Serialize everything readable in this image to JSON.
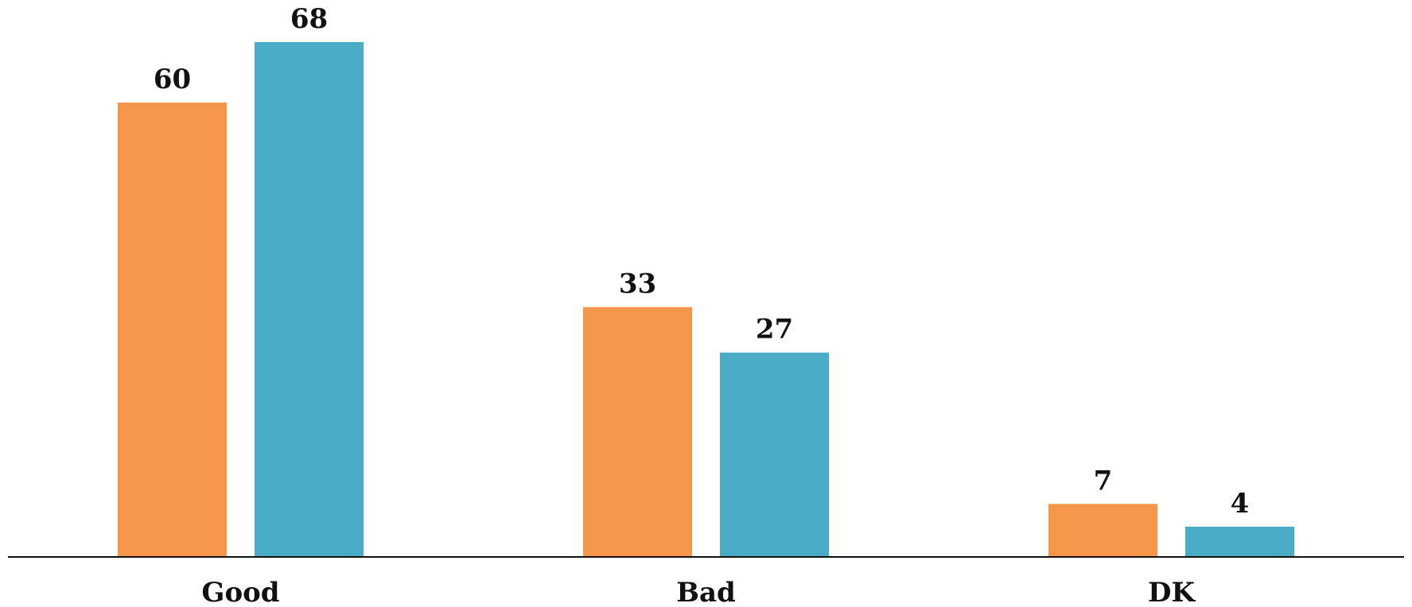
{
  "chart_data": {
    "type": "bar",
    "categories": [
      "Good",
      "Bad",
      "DK"
    ],
    "series": [
      {
        "color": "#F6964A",
        "values": [
          60,
          33,
          7
        ]
      },
      {
        "color": "#4AABC5",
        "values": [
          68,
          27,
          4
        ]
      }
    ],
    "ylim": [
      0,
      70
    ],
    "grid": false,
    "legend": "none",
    "baseline_color": "#111111"
  }
}
